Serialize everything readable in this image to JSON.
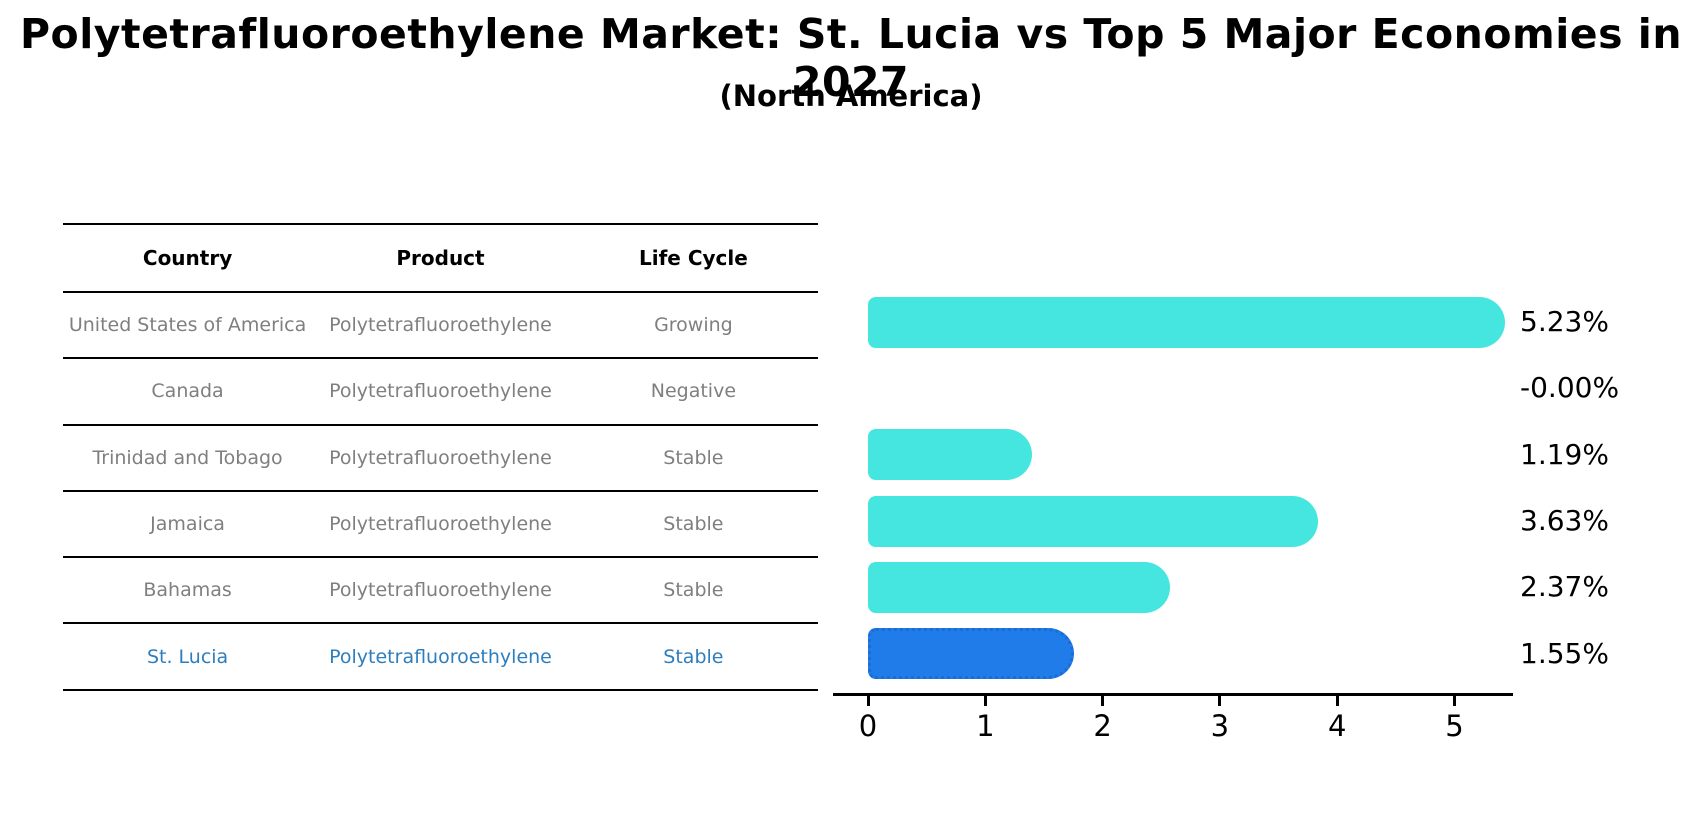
{
  "title": "Polytetrafluoroethylene Market: St. Lucia vs Top 5 Major Economies in 2027",
  "subtitle": "(North America)",
  "table": {
    "headers": [
      "Country",
      "Product",
      "Life Cycle"
    ],
    "rows": [
      {
        "country": "United States of America",
        "product": "Polytetrafluoroethylene",
        "life_cycle": "Growing",
        "highlight": false
      },
      {
        "country": "Canada",
        "product": "Polytetrafluoroethylene",
        "life_cycle": "Negative",
        "highlight": false
      },
      {
        "country": "Trinidad and Tobago",
        "product": "Polytetrafluoroethylene",
        "life_cycle": "Stable",
        "highlight": false
      },
      {
        "country": "Jamaica",
        "product": "Polytetrafluoroethylene",
        "life_cycle": "Stable",
        "highlight": false
      },
      {
        "country": "Bahamas",
        "product": "Polytetrafluoroethylene",
        "life_cycle": "Stable",
        "highlight": false
      },
      {
        "country": "St. Lucia",
        "product": "Polytetrafluoroethylene",
        "life_cycle": "Stable",
        "highlight": true
      }
    ]
  },
  "chart_data": {
    "type": "bar",
    "orientation": "horizontal",
    "title": "Polytetrafluoroethylene Market: St. Lucia vs Top 5 Major Economies in 2027",
    "subtitle": "(North America)",
    "categories": [
      "United States of America",
      "Canada",
      "Trinidad and Tobago",
      "Jamaica",
      "Bahamas",
      "St. Lucia"
    ],
    "values": [
      5.23,
      -0.0,
      1.19,
      3.63,
      2.37,
      1.55
    ],
    "value_labels": [
      "5.23%",
      "-0.00%",
      "1.19%",
      "3.63%",
      "2.37%",
      "1.55%"
    ],
    "xlabel": "",
    "ylabel": "",
    "xlim": [
      0,
      5.5
    ],
    "xticks": [
      0,
      1,
      2,
      3,
      4,
      5
    ],
    "grid": false,
    "legend": "none",
    "bar_color": "#46E6E0",
    "highlight_color": "#1F7CE8",
    "highlight_index": 5,
    "highlight_border_style": "dotted"
  },
  "colors": {
    "bar": "#46E6E0",
    "highlight_bar": "#1F7CE8",
    "highlight_bar_border": "#1B6CD6",
    "table_text": "#7f7f7f",
    "highlight_text": "#2E7EBD",
    "axis": "#000000",
    "title_text": "#000000"
  }
}
